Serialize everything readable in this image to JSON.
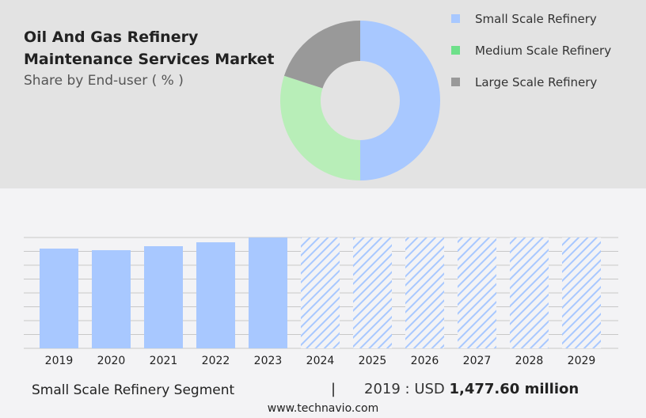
{
  "title_line1": "Oil And Gas Refinery",
  "title_line2": "Maintenance Services Market",
  "subtitle": "Share by End-user ( % )",
  "legend": [
    {
      "label": "Small Scale Refinery",
      "color": "#a8c8ff"
    },
    {
      "label": "Medium Scale Refinery",
      "color": "#6ee08a"
    },
    {
      "label": "Large Scale Refinery",
      "color": "#999999"
    }
  ],
  "chart_data": [
    {
      "type": "pie",
      "style": "donut",
      "labels": [
        "Small Scale Refinery",
        "Medium Scale Refinery",
        "Large Scale Refinery"
      ],
      "values": [
        50,
        30,
        20
      ],
      "colors": [
        "#a8c8ff",
        "#b8eeb8",
        "#999999"
      ]
    },
    {
      "type": "bar",
      "categories": [
        "2019",
        "2020",
        "2021",
        "2022",
        "2023",
        "2024",
        "2025",
        "2026",
        "2027",
        "2028",
        "2029"
      ],
      "values": [
        1477.6,
        1454,
        1513,
        1571,
        1642,
        null,
        null,
        null,
        null,
        null,
        null
      ],
      "forecast": [
        false,
        false,
        false,
        false,
        false,
        true,
        true,
        true,
        true,
        true,
        true
      ],
      "color": "#a8c8ff",
      "grid": true
    }
  ],
  "footer": {
    "segment": "Small Scale Refinery Segment",
    "separator": "|",
    "year_label": "2019 : USD ",
    "value": "1,477.60 million"
  },
  "website": "www.technavio.com"
}
